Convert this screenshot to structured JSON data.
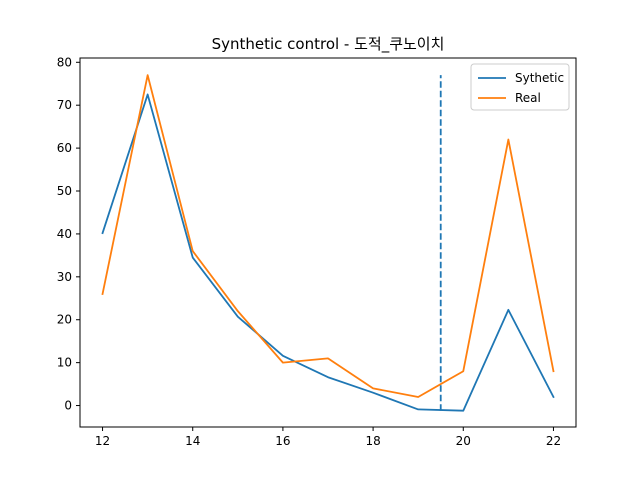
{
  "chart_data": {
    "type": "line",
    "title": "Synthetic control - 도적_쿠노이치",
    "xlabel": "",
    "ylabel": "",
    "x": [
      12,
      13,
      14,
      15,
      16,
      17,
      18,
      19,
      20,
      21,
      22
    ],
    "xlim": [
      11.5,
      22.5
    ],
    "ylim": [
      -5,
      81
    ],
    "xticks": [
      12,
      14,
      16,
      18,
      20,
      22
    ],
    "yticks": [
      0,
      10,
      20,
      30,
      40,
      50,
      60,
      70,
      80
    ],
    "grid": false,
    "legend_position": "top-right",
    "series": [
      {
        "name": "Sythetic",
        "color": "#1f77b4",
        "values": [
          40.2,
          72.5,
          34.5,
          20.7,
          11.6,
          6.6,
          3.0,
          -0.9,
          -1.2,
          22.3,
          2.0
        ]
      },
      {
        "name": "Real",
        "color": "#ff7f0e",
        "values": [
          26.0,
          77.0,
          36.0,
          22.0,
          10.0,
          11.0,
          4.0,
          2.0,
          8.0,
          62.0,
          8.0
        ]
      }
    ],
    "vline": {
      "x": 19.5,
      "y_from": -1.2,
      "y_to": 77.0,
      "style": "dashed",
      "color": "#1f77b4"
    }
  }
}
